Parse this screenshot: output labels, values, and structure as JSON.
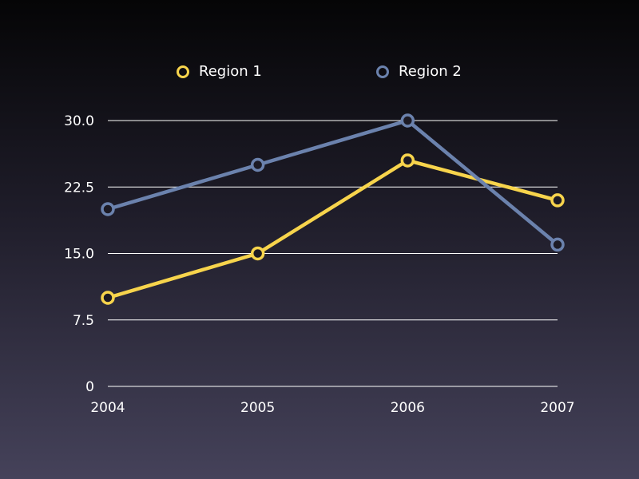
{
  "chart_data": {
    "type": "line",
    "title": "",
    "xlabel": "",
    "ylabel": "",
    "categories": [
      "2004",
      "2005",
      "2006",
      "2007"
    ],
    "yticks": [
      "0",
      "7.5",
      "15.0",
      "22.5",
      "30.0"
    ],
    "ylim": [
      0,
      30
    ],
    "grid": true,
    "legend_position": "top-center",
    "series": [
      {
        "name": "Region 1",
        "color": "#f7d44c",
        "values": [
          10,
          15,
          25.5,
          21
        ]
      },
      {
        "name": "Region 2",
        "color": "#6b82ad",
        "values": [
          20,
          25,
          30,
          16
        ]
      }
    ]
  }
}
